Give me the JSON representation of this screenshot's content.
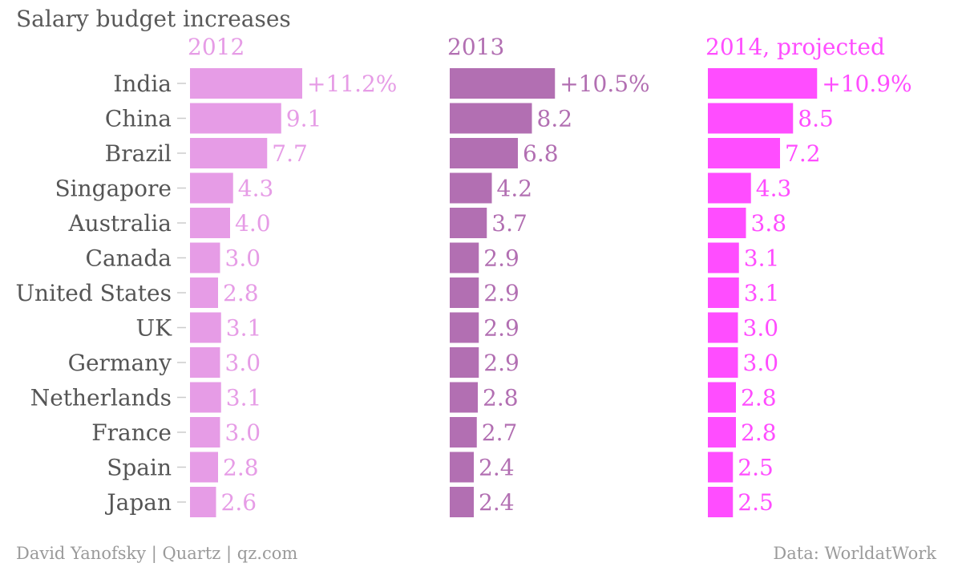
{
  "chart_data": {
    "type": "bar",
    "orientation": "horizontal",
    "title": "Salary budget increases",
    "categories": [
      "India",
      "China",
      "Brazil",
      "Singapore",
      "Australia",
      "Canada",
      "United States",
      "UK",
      "Germany",
      "Netherlands",
      "France",
      "Spain",
      "Japan"
    ],
    "series": [
      {
        "name": "2012",
        "color": "#E69CE6",
        "values": [
          11.2,
          9.1,
          7.7,
          4.3,
          4.0,
          3.0,
          2.8,
          3.1,
          3.0,
          3.1,
          3.0,
          2.8,
          2.6
        ],
        "labels": [
          "+11.2%",
          "9.1",
          "7.7",
          "4.3",
          "4.0",
          "3.0",
          "2.8",
          "3.1",
          "3.0",
          "3.1",
          "3.0",
          "2.8",
          "2.6"
        ]
      },
      {
        "name": "2013",
        "color": "#B26FB2",
        "values": [
          10.5,
          8.2,
          6.8,
          4.2,
          3.7,
          2.9,
          2.9,
          2.9,
          2.9,
          2.8,
          2.7,
          2.4,
          2.4
        ],
        "labels": [
          "+10.5%",
          "8.2",
          "6.8",
          "4.2",
          "3.7",
          "2.9",
          "2.9",
          "2.9",
          "2.9",
          "2.8",
          "2.7",
          "2.4",
          "2.4"
        ]
      },
      {
        "name": "2014, projected",
        "color": "#FF4DFF",
        "values": [
          10.9,
          8.5,
          7.2,
          4.3,
          3.8,
          3.1,
          3.1,
          3.0,
          3.0,
          2.8,
          2.8,
          2.5,
          2.5
        ],
        "labels": [
          "+10.9%",
          "8.5",
          "7.2",
          "4.3",
          "3.8",
          "3.1",
          "3.1",
          "3.0",
          "3.0",
          "2.8",
          "2.8",
          "2.5",
          "2.5"
        ]
      }
    ],
    "xlim": [
      0,
      11.2
    ],
    "grid": false,
    "legend": "none"
  },
  "footer": {
    "credit": "David Yanofsky | Quartz | qz.com",
    "source": "Data: WorldatWork"
  },
  "colors": {
    "text": "#555555",
    "footer": "#9a9a9a",
    "tick": "#cccccc"
  }
}
